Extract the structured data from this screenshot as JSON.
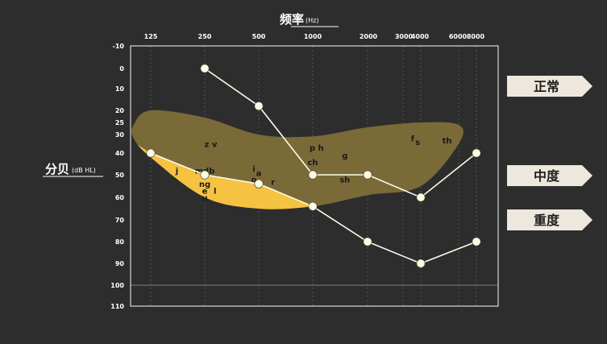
{
  "chart_data": {
    "type": "line",
    "title": "",
    "xlabel": "频率",
    "xlabel_unit": "(Hz)",
    "ylabel": "分贝",
    "ylabel_unit": "(dB HL)",
    "x_scale": "log",
    "x_ticks": [
      {
        "value": 125,
        "label": "125"
      },
      {
        "value": 250,
        "label": "250"
      },
      {
        "value": 500,
        "label": "500"
      },
      {
        "value": 1000,
        "label": "1000"
      },
      {
        "value": 2000,
        "label": "2000"
      },
      {
        "value": 3000,
        "label": "3000"
      },
      {
        "value": 4000,
        "label": "4000"
      },
      {
        "value": 6000,
        "label": "6000"
      },
      {
        "value": 8000,
        "label": "8000"
      }
    ],
    "y_ticks": [
      -10,
      0,
      10,
      20,
      25,
      30,
      40,
      50,
      60,
      70,
      80,
      90,
      100,
      110
    ],
    "ylim": [
      -10,
      110
    ],
    "y_inverted": true,
    "grid": true,
    "series": [
      {
        "points": [
          {
            "x": 125,
            "y": 40
          },
          {
            "x": 250,
            "y": 50
          },
          {
            "x": 500,
            "y": 54
          },
          {
            "x": 1000,
            "y": 64
          },
          {
            "x": 2000,
            "y": 80
          },
          {
            "x": 4000,
            "y": 90
          },
          {
            "x": 8000,
            "y": 80
          }
        ]
      },
      {
        "points": [
          {
            "x": 250,
            "y": 0
          },
          {
            "x": 500,
            "y": 18
          },
          {
            "x": 1000,
            "y": 50
          },
          {
            "x": 2000,
            "y": 50
          },
          {
            "x": 4000,
            "y": 60
          },
          {
            "x": 8000,
            "y": 40
          }
        ]
      }
    ],
    "speech_banana": {
      "upper": [
        [
          110,
          26
        ],
        [
          125,
          20
        ],
        [
          250,
          23
        ],
        [
          500,
          30
        ],
        [
          1000,
          31
        ],
        [
          2000,
          27
        ],
        [
          4000,
          25
        ],
        [
          6000,
          26
        ]
      ],
      "lower": [
        [
          6000,
          35
        ],
        [
          4000,
          55
        ],
        [
          2000,
          59
        ],
        [
          1000,
          64
        ],
        [
          500,
          65
        ],
        [
          250,
          60
        ],
        [
          125,
          42
        ],
        [
          110,
          32
        ]
      ]
    },
    "phonemes": [
      {
        "text": "z v",
        "x": 270,
        "y": 35
      },
      {
        "text": "j",
        "x": 175,
        "y": 48
      },
      {
        "text": "mdb",
        "x": 250,
        "y": 48
      },
      {
        "text": "ng",
        "x": 250,
        "y": 54
      },
      {
        "text": "e",
        "x": 250,
        "y": 57
      },
      {
        "text": "l",
        "x": 285,
        "y": 57
      },
      {
        "text": "u",
        "x": 250,
        "y": 60
      },
      {
        "text": "i",
        "x": 470,
        "y": 47
      },
      {
        "text": "a",
        "x": 500,
        "y": 49
      },
      {
        "text": "o",
        "x": 470,
        "y": 52
      },
      {
        "text": "r",
        "x": 600,
        "y": 53
      },
      {
        "text": "p h",
        "x": 1050,
        "y": 37
      },
      {
        "text": "g",
        "x": 1500,
        "y": 41
      },
      {
        "text": "ch",
        "x": 1000,
        "y": 44
      },
      {
        "text": "sh",
        "x": 1500,
        "y": 52
      },
      {
        "text": "f",
        "x": 3500,
        "y": 32
      },
      {
        "text": "s",
        "x": 3800,
        "y": 34
      },
      {
        "text": "th",
        "x": 5300,
        "y": 33
      }
    ],
    "legend_tags": [
      {
        "text": "正常"
      },
      {
        "text": "中度"
      },
      {
        "text": "重度"
      }
    ],
    "colors": {
      "background": "#2d2d2d",
      "banana_light": "#f5c242",
      "banana_dark": "#7a6a38",
      "line": "#fdfce8",
      "marker": "#fdfbe0",
      "tag": "#ede7dd",
      "grid": "#707070"
    }
  }
}
